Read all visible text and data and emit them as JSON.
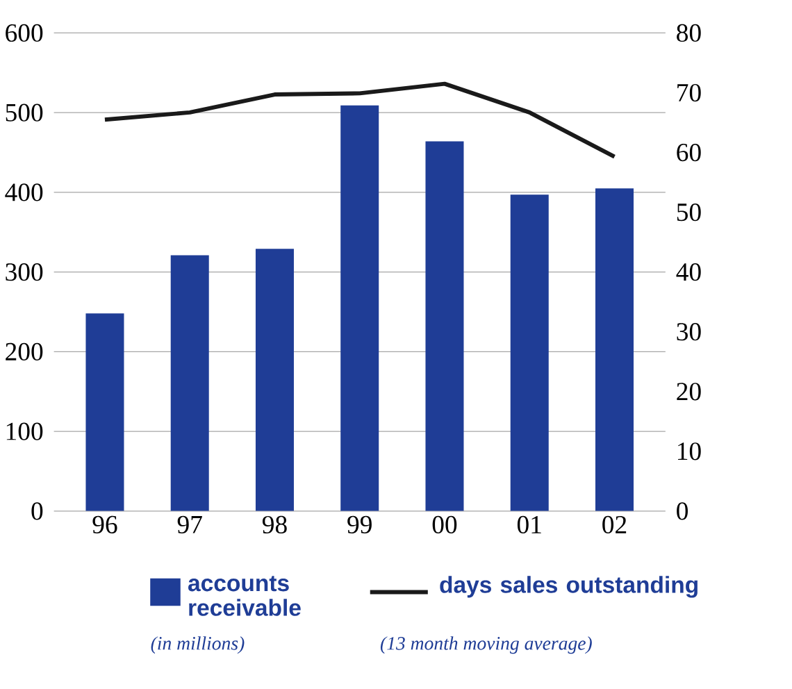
{
  "chart_data": {
    "type": "bar",
    "categories": [
      "96",
      "97",
      "98",
      "99",
      "00",
      "01",
      "02"
    ],
    "series": [
      {
        "name": "accounts receivable",
        "color": "#1f3d96",
        "values": [
          248,
          321,
          329,
          509,
          464,
          397,
          405
        ]
      },
      {
        "name": "days sales outstanding",
        "type": "line",
        "axis": "y2",
        "color": "#1a1a1a",
        "values": [
          65.5,
          66.7,
          69.7,
          69.9,
          71.5,
          66.7,
          59.3
        ]
      }
    ],
    "ylim": [
      0,
      600
    ],
    "yticks": [
      0,
      100,
      200,
      300,
      400,
      500,
      600
    ],
    "y2lim": [
      0,
      80
    ],
    "y2ticks": [
      0,
      10,
      20,
      30,
      40,
      50,
      60,
      70,
      80
    ],
    "grid": "y",
    "legend": "bottom",
    "marker": "none",
    "line_style": "solid",
    "annotations": [
      "(in millions)",
      "(13 month moving average)"
    ]
  }
}
